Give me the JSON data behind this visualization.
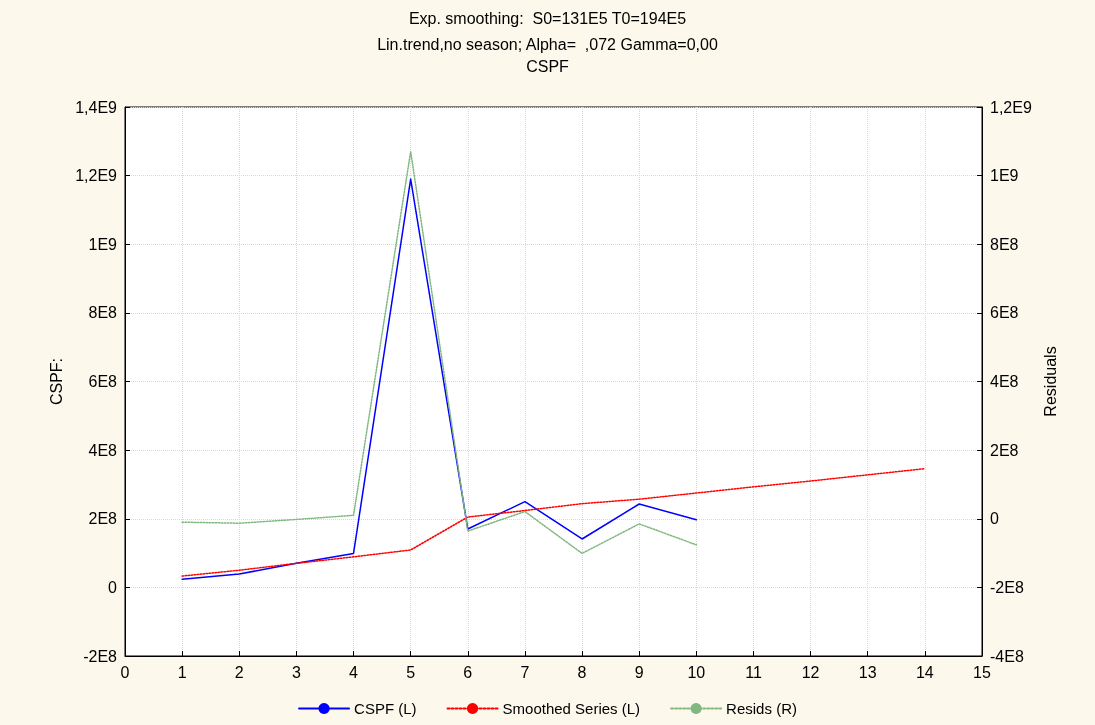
{
  "chart_data": {
    "type": "line",
    "title": "Exp. smoothing:  S0=131E5 T0=194E5",
    "subtitle": "Lin.trend,no season; Alpha=  ,072 Gamma=0,00\nCSPF",
    "ylabel": "CSPF:",
    "y2label": "Residuals",
    "x": [
      1,
      2,
      3,
      4,
      5,
      6,
      7,
      8,
      9,
      10,
      11,
      12,
      13,
      14
    ],
    "series": [
      {
        "name": "CSPF (L)",
        "color": "#0000ff",
        "line_style": "solid",
        "values": [
          24000000,
          39000000,
          70000000,
          99000000,
          1190000000,
          170000000,
          250000000,
          141000000,
          243000000,
          197000000,
          null,
          null,
          null,
          null
        ]
      },
      {
        "name": "Smoothed Series (L)",
        "color": "#ff0000",
        "line_style": "dotted",
        "values": [
          33000000,
          50000000,
          70000000,
          89000000,
          109000000,
          205000000,
          224000000,
          244000000,
          257000000,
          275000000,
          293000000,
          310000000,
          328000000,
          346000000
        ]
      },
      {
        "name": "Resids (R)",
        "color": "#80b880",
        "line_style": "dotted",
        "axis": "y2",
        "values": [
          -10000000,
          -13000000,
          -2000000,
          10000000,
          1070000000,
          -36000000,
          21000000,
          -101000000,
          -15000000,
          -76000000,
          null,
          null,
          null,
          null
        ]
      }
    ],
    "xlim": [
      0,
      15
    ],
    "xticks": [
      0,
      1,
      2,
      3,
      4,
      5,
      6,
      7,
      8,
      9,
      10,
      11,
      12,
      13,
      14,
      15
    ],
    "ylim": [
      -200000000,
      1400000000
    ],
    "yticks": [
      {
        "value": -200000000,
        "label": "-2E8"
      },
      0,
      {
        "value": 200000000,
        "label": "2E8"
      },
      {
        "value": 400000000,
        "label": "4E8"
      },
      {
        "value": 600000000,
        "label": "6E8"
      },
      {
        "value": 800000000,
        "label": "8E8"
      },
      {
        "value": 1000000000,
        "label": "1E9"
      },
      {
        "value": 1200000000,
        "label": "1,2E9"
      },
      {
        "value": 1400000000,
        "label": "1,4E9"
      }
    ],
    "y2lim": [
      -400000000,
      1200000000
    ],
    "y2ticks": [
      {
        "value": -400000000,
        "label": "-4E8"
      },
      {
        "value": -200000000,
        "label": "-2E8"
      },
      0,
      {
        "value": 200000000,
        "label": "2E8"
      },
      {
        "value": 400000000,
        "label": "4E8"
      },
      {
        "value": 600000000,
        "label": "6E8"
      },
      {
        "value": 800000000,
        "label": "8E8"
      },
      {
        "value": 1000000000,
        "label": "1E9"
      },
      {
        "value": 1200000000,
        "label": "1,2E9"
      }
    ],
    "grid": true,
    "legend": "bottom",
    "marker": "none"
  }
}
